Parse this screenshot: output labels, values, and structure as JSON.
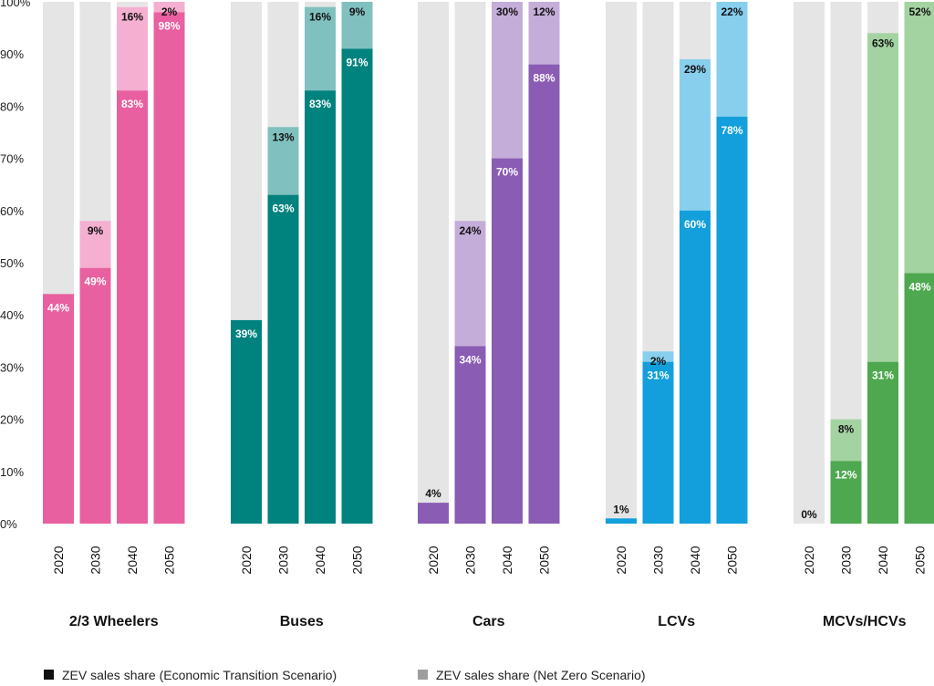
{
  "chart_data": {
    "type": "bar",
    "stacked": true,
    "ylim": [
      0,
      100
    ],
    "yticks": [
      "0%",
      "10%",
      "20%",
      "30%",
      "40%",
      "50%",
      "60%",
      "70%",
      "80%",
      "90%",
      "100%"
    ],
    "years": [
      "2020",
      "2030",
      "2040",
      "2050"
    ],
    "groups": [
      {
        "name": "2/3 Wheelers",
        "color": "#e8609f",
        "color_light": "#f5afd1",
        "ets": [
          44,
          49,
          83,
          98
        ],
        "nz": [
          null,
          9,
          16,
          2
        ],
        "ets_labels": [
          "44%",
          "49%",
          "83%",
          "98%"
        ],
        "nz_labels": [
          "",
          "9%",
          "16%",
          "2%"
        ]
      },
      {
        "name": "Buses",
        "color": "#00827f",
        "color_light": "#80c1bf",
        "ets": [
          39,
          63,
          83,
          91
        ],
        "nz": [
          null,
          13,
          16,
          9
        ],
        "ets_labels": [
          "39%",
          "63%",
          "83%",
          "91%"
        ],
        "nz_labels": [
          "",
          "13%",
          "16%",
          "9%"
        ]
      },
      {
        "name": "Cars",
        "color": "#8a5cb4",
        "color_light": "#c5add9",
        "ets": [
          4,
          34,
          70,
          88
        ],
        "nz": [
          null,
          24,
          30,
          12
        ],
        "ets_labels": [
          "4%",
          "34%",
          "70%",
          "88%"
        ],
        "nz_labels": [
          "",
          "24%",
          "30%",
          "12%"
        ]
      },
      {
        "name": "LCVs",
        "color": "#129fdc",
        "color_light": "#88cfee",
        "ets": [
          1,
          31,
          60,
          78
        ],
        "nz": [
          null,
          2,
          29,
          22
        ],
        "ets_labels": [
          "1%",
          "31%",
          "60%",
          "78%"
        ],
        "nz_labels": [
          "",
          "2%",
          "29%",
          "22%"
        ]
      },
      {
        "name": "MCVs/HCVs",
        "color": "#4ea84f",
        "color_light": "#a4d3a2",
        "ets": [
          0,
          12,
          31,
          48
        ],
        "nz": [
          null,
          8,
          63,
          52
        ],
        "ets_labels": [
          "0%",
          "12%",
          "31%",
          "48%"
        ],
        "nz_labels": [
          "",
          "8%",
          "63%",
          "52%"
        ]
      }
    ],
    "background_color": "#e5e5e5",
    "legend": [
      {
        "label": "ZEV sales share (Economic Transition Scenario)",
        "color": "#111111"
      },
      {
        "label": "ZEV sales share (Net Zero Scenario)",
        "color": "#9e9e9e"
      }
    ],
    "legend_position": "bottom-left"
  }
}
